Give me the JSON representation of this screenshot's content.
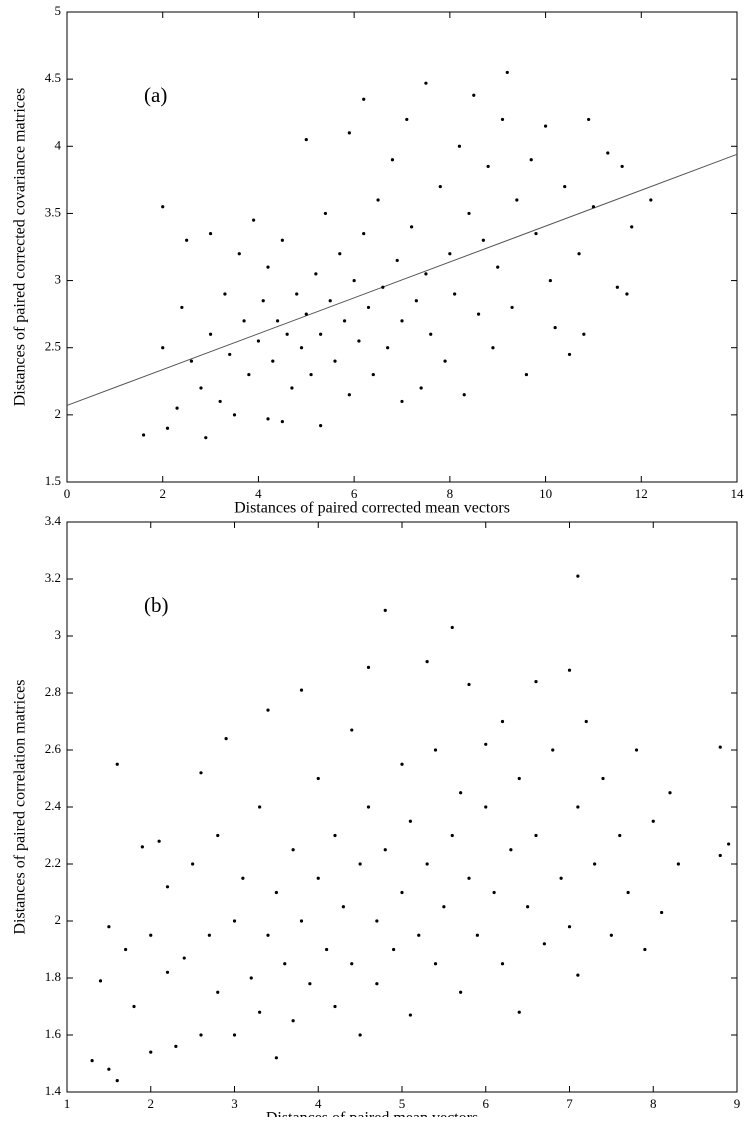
{
  "chart_data": [
    {
      "type": "scatter",
      "annotation": "(a)",
      "xlabel": "Distances of paired corrected mean vectors",
      "ylabel": "Distances of paired corrected covariance matrices",
      "color": "#000000",
      "xlim": [
        0,
        14
      ],
      "ylim": [
        1.5,
        5
      ],
      "xticks": [
        0,
        2,
        4,
        6,
        8,
        10,
        12,
        14
      ],
      "yticks": [
        1.5,
        2,
        2.5,
        3,
        3.5,
        4,
        4.5,
        5
      ],
      "x": [
        1.6,
        2.0,
        2.0,
        2.1,
        2.3,
        2.4,
        2.5,
        2.6,
        2.8,
        2.9,
        3.0,
        3.0,
        3.2,
        3.3,
        3.4,
        3.5,
        3.6,
        3.7,
        3.8,
        3.9,
        4.0,
        4.1,
        4.2,
        4.2,
        4.3,
        4.4,
        4.5,
        4.5,
        4.6,
        4.7,
        4.8,
        4.9,
        5.0,
        5.0,
        5.1,
        5.2,
        5.3,
        5.3,
        5.4,
        5.5,
        5.6,
        5.7,
        5.8,
        5.9,
        5.9,
        6.0,
        6.1,
        6.2,
        6.2,
        6.3,
        6.4,
        6.5,
        6.6,
        6.7,
        6.8,
        6.9,
        7.0,
        7.0,
        7.1,
        7.2,
        7.3,
        7.4,
        7.5,
        7.5,
        7.6,
        7.8,
        7.9,
        8.0,
        8.1,
        8.2,
        8.3,
        8.4,
        8.5,
        8.6,
        8.7,
        8.8,
        8.9,
        9.0,
        9.1,
        9.2,
        9.3,
        9.4,
        9.6,
        9.7,
        9.8,
        10.0,
        10.1,
        10.2,
        10.4,
        10.5,
        10.7,
        10.8,
        10.9,
        11.0,
        11.3,
        11.5,
        11.6,
        11.7,
        11.8,
        12.2
      ],
      "y": [
        1.85,
        3.55,
        2.5,
        1.9,
        2.05,
        2.8,
        3.3,
        2.4,
        2.2,
        1.83,
        3.35,
        2.6,
        2.1,
        2.9,
        2.45,
        2.0,
        3.2,
        2.7,
        2.3,
        3.45,
        2.55,
        2.85,
        1.97,
        3.1,
        2.4,
        2.7,
        1.95,
        3.3,
        2.6,
        2.2,
        2.9,
        2.5,
        4.05,
        2.75,
        2.3,
        3.05,
        1.92,
        2.6,
        3.5,
        2.85,
        2.4,
        3.2,
        2.7,
        4.1,
        2.15,
        3.0,
        2.55,
        4.35,
        3.35,
        2.8,
        2.3,
        3.6,
        2.95,
        2.5,
        3.9,
        3.15,
        2.1,
        2.7,
        4.2,
        3.4,
        2.85,
        2.2,
        4.47,
        3.05,
        2.6,
        3.7,
        2.4,
        3.2,
        2.9,
        4.0,
        2.15,
        3.5,
        4.38,
        2.75,
        3.3,
        3.85,
        2.5,
        3.1,
        4.2,
        4.55,
        2.8,
        3.6,
        2.3,
        3.9,
        3.35,
        4.15,
        3.0,
        2.65,
        3.7,
        2.45,
        3.2,
        2.6,
        4.2,
        3.55,
        3.95,
        2.95,
        3.85,
        2.9,
        3.4,
        3.6
      ],
      "trend_line": {
        "color": "#555555",
        "x": [
          0,
          14
        ],
        "y": [
          2.07,
          3.94
        ]
      }
    },
    {
      "type": "scatter",
      "annotation": "(b)",
      "xlabel": "Distances of paired mean vectors",
      "ylabel": "Distances of paired correlation matrices",
      "color": "#000000",
      "xlim": [
        1,
        9
      ],
      "ylim": [
        1.4,
        3.4
      ],
      "xticks": [
        1,
        2,
        3,
        4,
        5,
        6,
        7,
        8,
        9
      ],
      "yticks": [
        1.4,
        1.6,
        1.8,
        2,
        2.2,
        2.4,
        2.6,
        2.8,
        3,
        3.2,
        3.4
      ],
      "x": [
        1.3,
        1.4,
        1.5,
        1.5,
        1.6,
        1.6,
        1.7,
        1.8,
        1.9,
        2.0,
        2.0,
        2.1,
        2.2,
        2.2,
        2.3,
        2.4,
        2.5,
        2.6,
        2.6,
        2.7,
        2.8,
        2.8,
        2.9,
        3.0,
        3.0,
        3.1,
        3.2,
        3.3,
        3.3,
        3.4,
        3.4,
        3.5,
        3.5,
        3.6,
        3.7,
        3.7,
        3.8,
        3.8,
        3.9,
        4.0,
        4.0,
        4.1,
        4.2,
        4.2,
        4.3,
        4.4,
        4.4,
        4.5,
        4.5,
        4.6,
        4.6,
        4.7,
        4.7,
        4.8,
        4.8,
        4.9,
        5.0,
        5.0,
        5.1,
        5.1,
        5.2,
        5.3,
        5.3,
        5.4,
        5.4,
        5.5,
        5.6,
        5.6,
        5.7,
        5.7,
        5.8,
        5.8,
        5.9,
        6.0,
        6.0,
        6.1,
        6.2,
        6.2,
        6.3,
        6.4,
        6.4,
        6.5,
        6.6,
        6.6,
        6.7,
        6.8,
        6.9,
        7.0,
        7.0,
        7.1,
        7.1,
        7.1,
        7.2,
        7.3,
        7.4,
        7.5,
        7.6,
        7.7,
        7.8,
        7.9,
        8.0,
        8.1,
        8.2,
        8.3,
        8.8,
        8.8,
        8.9
      ],
      "y": [
        1.51,
        1.79,
        1.98,
        1.48,
        1.44,
        2.55,
        1.9,
        1.7,
        2.26,
        1.54,
        1.95,
        2.28,
        1.82,
        2.12,
        1.56,
        1.87,
        2.2,
        1.6,
        2.52,
        1.95,
        2.3,
        1.75,
        2.64,
        2.0,
        1.6,
        2.15,
        1.8,
        2.4,
        1.68,
        1.95,
        2.74,
        1.52,
        2.1,
        1.85,
        2.25,
        1.65,
        2.81,
        2.0,
        1.78,
        2.15,
        2.5,
        1.9,
        2.3,
        1.7,
        2.05,
        2.67,
        1.85,
        2.2,
        1.6,
        2.4,
        2.89,
        2.0,
        1.78,
        3.09,
        2.25,
        1.9,
        2.55,
        2.1,
        1.67,
        2.35,
        1.95,
        2.91,
        2.2,
        1.85,
        2.6,
        2.05,
        3.03,
        2.3,
        1.75,
        2.45,
        2.15,
        2.83,
        1.95,
        2.4,
        2.62,
        2.1,
        1.85,
        2.7,
        2.25,
        1.68,
        2.5,
        2.05,
        2.84,
        2.3,
        1.92,
        2.6,
        2.15,
        2.88,
        1.98,
        3.21,
        2.4,
        1.81,
        2.7,
        2.2,
        2.5,
        1.95,
        2.3,
        2.1,
        2.6,
        1.9,
        2.35,
        2.03,
        2.45,
        2.2,
        2.61,
        2.23,
        2.27
      ]
    }
  ]
}
